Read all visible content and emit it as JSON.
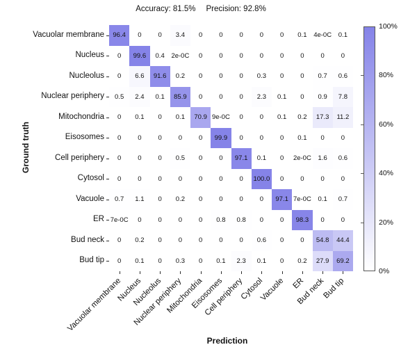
{
  "header": {
    "accuracy": "Accuracy: 81.5%",
    "precision": "Precision: 92.8%"
  },
  "axes": {
    "x_label": "Prediction",
    "y_label": "Ground truth"
  },
  "colors": {
    "accent_100pct": "#8583e8",
    "zero_cell": "#ffffff",
    "axis_border": "#2b2b2b"
  },
  "colorbar": {
    "tick_labels_top_to_bottom": [
      "100%",
      "80%",
      "60%",
      "40%",
      "20%",
      "0%"
    ]
  },
  "chart_data": {
    "type": "heatmap",
    "title": "Accuracy: 81.5%   Precision: 92.8%",
    "xlabel": "Prediction",
    "ylabel": "Ground truth",
    "unit": "%",
    "value_range": [
      0,
      100
    ],
    "colormap": [
      "#ffffff",
      "#8583e8"
    ],
    "legend_position": "right-colorbar",
    "categories": [
      "Vacuolar membrane",
      "Nucleus",
      "Nucleolus",
      "Nuclear periphery",
      "Mitochondria",
      "Eisosomes",
      "Cell periphery",
      "Cytosol",
      "Vacuole",
      "ER",
      "Bud neck",
      "Bud tip"
    ],
    "matrix": [
      [
        "96.4",
        "0",
        "0",
        "3.4",
        "0",
        "0",
        "0",
        "0",
        "0",
        "0.1",
        "4e-0C",
        "0.1"
      ],
      [
        "0",
        "99.6",
        "0.4",
        "2e-0C",
        "0",
        "0",
        "0",
        "0",
        "0",
        "0",
        "0",
        "0"
      ],
      [
        "0",
        "6.6",
        "91.6",
        "0.2",
        "0",
        "0",
        "0",
        "0.3",
        "0",
        "0",
        "0.7",
        "0.6"
      ],
      [
        "0.5",
        "2.4",
        "0.1",
        "85.9",
        "0",
        "0",
        "0",
        "2.3",
        "0.1",
        "0",
        "0.9",
        "7.8"
      ],
      [
        "0",
        "0.1",
        "0",
        "0.1",
        "70.9",
        "9e-0C",
        "0",
        "0",
        "0.1",
        "0.2",
        "17.3",
        "11.2"
      ],
      [
        "0",
        "0",
        "0",
        "0",
        "0",
        "99.9",
        "0",
        "0",
        "0",
        "0.1",
        "0",
        "0"
      ],
      [
        "0",
        "0",
        "0",
        "0.5",
        "0",
        "0",
        "97.1",
        "0.1",
        "0",
        "2e-0C",
        "1.6",
        "0.6"
      ],
      [
        "0",
        "0",
        "0",
        "0",
        "0",
        "0",
        "0",
        "100.0",
        "0",
        "0",
        "0",
        "0"
      ],
      [
        "0.7",
        "1.1",
        "0",
        "0.2",
        "0",
        "0",
        "0",
        "0",
        "97.1",
        "7e-0C",
        "0.1",
        "0.7"
      ],
      [
        "7e-0C",
        "0",
        "0",
        "0",
        "0",
        "0.8",
        "0.8",
        "0",
        "0",
        "98.3",
        "0",
        "0"
      ],
      [
        "0",
        "0.2",
        "0",
        "0",
        "0",
        "0",
        "0",
        "0.6",
        "0",
        "0",
        "54.8",
        "44.4"
      ],
      [
        "0",
        "0.1",
        "0",
        "0.3",
        "0",
        "0.1",
        "2.3",
        "0.1",
        "0",
        "0.2",
        "27.9",
        "69.2"
      ]
    ]
  }
}
